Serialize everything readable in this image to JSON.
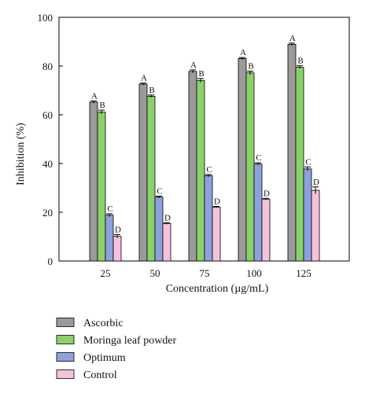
{
  "chart_data": {
    "type": "bar",
    "title": "",
    "xlabel": "Concentration (µg/mL)",
    "ylabel": "Inhibition (%)",
    "ylim": [
      0,
      100
    ],
    "yticks": [
      0,
      20,
      40,
      60,
      80,
      100
    ],
    "categories": [
      "25",
      "50",
      "75",
      "100",
      "125"
    ],
    "grid": false,
    "legend_position": "bottom",
    "series": [
      {
        "name": "Ascorbic",
        "color": "#9a9a9a",
        "values": [
          65.2,
          72.6,
          77.8,
          83.1,
          88.9
        ],
        "errors": [
          0.5,
          0.4,
          0.6,
          0.4,
          0.5
        ],
        "letters": [
          "A",
          "A",
          "A",
          "A",
          "A"
        ]
      },
      {
        "name": "Moringa leaf powder",
        "color": "#8bd16a",
        "values": [
          61.1,
          67.6,
          74.1,
          77.2,
          79.5
        ],
        "errors": [
          0.8,
          0.5,
          0.8,
          0.7,
          0.6
        ],
        "letters": [
          "B",
          "B",
          "B",
          "B",
          "B"
        ]
      },
      {
        "name": "Optimum",
        "color": "#8da2dd",
        "values": [
          18.8,
          26.2,
          35.0,
          39.8,
          37.8
        ],
        "errors": [
          0.6,
          0.4,
          0.5,
          0.5,
          0.8
        ],
        "letters": [
          "C",
          "C",
          "C",
          "C",
          "C"
        ]
      },
      {
        "name": "Control",
        "color": "#f5c2dc",
        "values": [
          10.1,
          15.4,
          22.1,
          25.4,
          29.0
        ],
        "errors": [
          0.7,
          0.3,
          0.3,
          0.3,
          1.4
        ],
        "letters": [
          "D",
          "D",
          "D",
          "D",
          "D"
        ]
      }
    ]
  }
}
